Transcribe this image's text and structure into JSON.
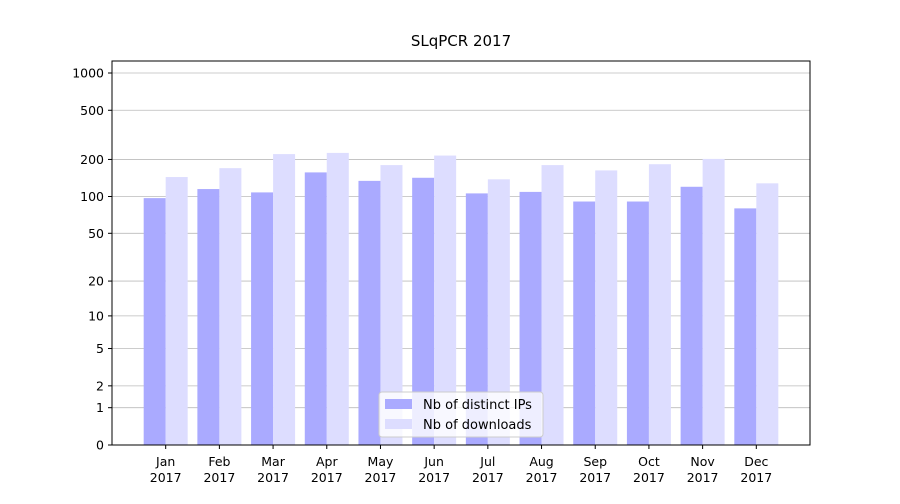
{
  "chart_data": {
    "type": "bar",
    "title": "SLqPCR 2017",
    "scale": "log1p",
    "categories": [
      "Jan 2017",
      "Feb 2017",
      "Mar 2017",
      "Apr 2017",
      "May 2017",
      "Jun 2017",
      "Jul 2017",
      "Aug 2017",
      "Sep 2017",
      "Oct 2017",
      "Nov 2017",
      "Dec 2017"
    ],
    "series": [
      {
        "name": "Nb of distinct IPs",
        "color": "#aaaaff",
        "values": [
          97,
          115,
          108,
          157,
          134,
          142,
          106,
          109,
          91,
          91,
          120,
          80
        ]
      },
      {
        "name": "Nb of downloads",
        "color": "#ddddff",
        "values": [
          144,
          170,
          221,
          226,
          180,
          215,
          138,
          180,
          163,
          183,
          202,
          128
        ]
      }
    ],
    "ylim": [
      0,
      1250
    ],
    "yticks": [
      0,
      1,
      2,
      5,
      10,
      20,
      50,
      100,
      200,
      500,
      1000
    ],
    "grid": true,
    "legend": "lower center"
  }
}
